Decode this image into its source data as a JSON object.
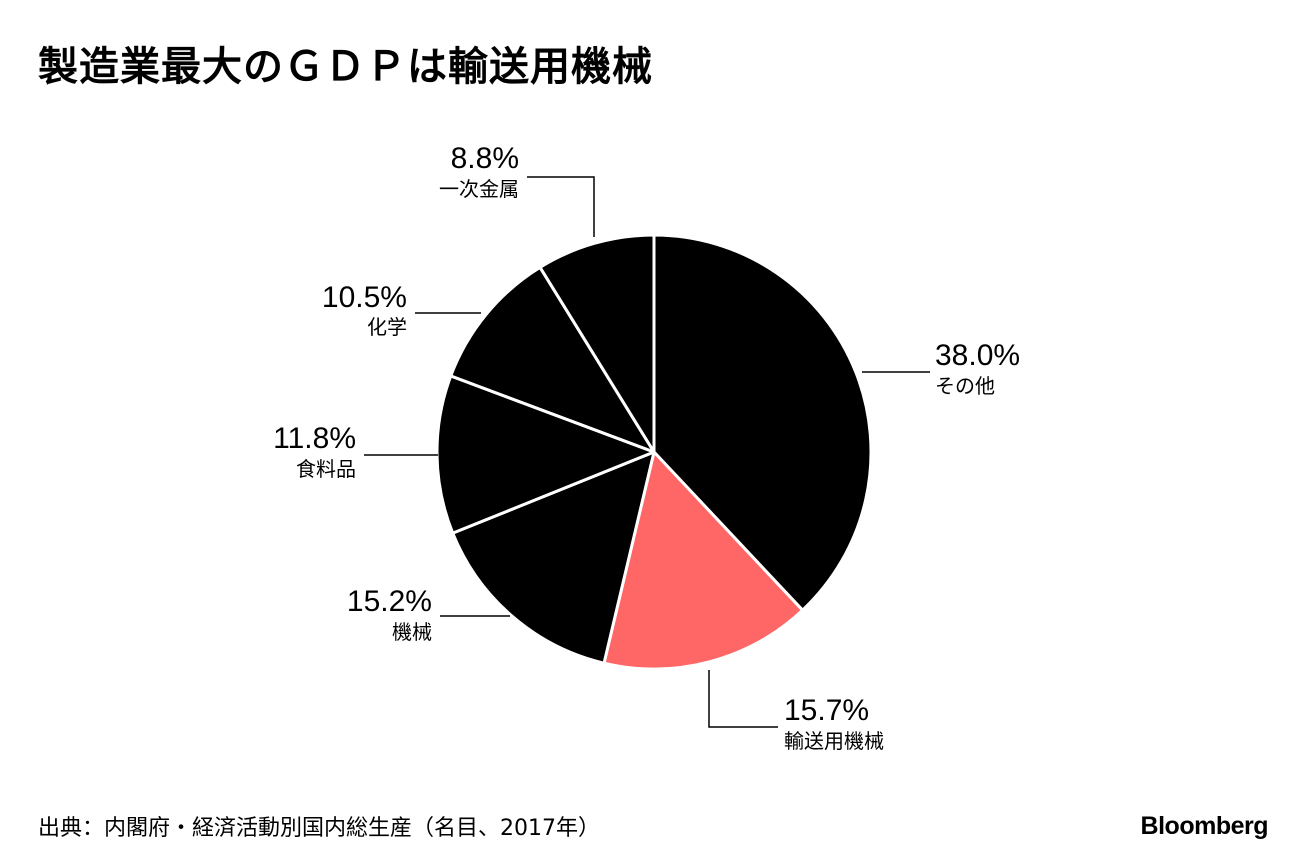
{
  "title": "製造業最大のＧＤＰは輸送用機械",
  "source": "出典：内閣府・経済活動別国内総生産（名目、2017年）",
  "brand": "Bloomberg",
  "colors": {
    "default_slice": "#000000",
    "highlight_slice": "#ff6666",
    "separator": "#ffffff",
    "leader": "#000000"
  },
  "chart_data": {
    "type": "pie",
    "unit": "%",
    "slices": [
      {
        "label": "その他",
        "value": 38.0,
        "display": "38.0%",
        "highlight": false
      },
      {
        "label": "輸送用機械",
        "value": 15.7,
        "display": "15.7%",
        "highlight": true
      },
      {
        "label": "機械",
        "value": 15.2,
        "display": "15.2%",
        "highlight": false
      },
      {
        "label": "食料品",
        "value": 11.8,
        "display": "11.8%",
        "highlight": false
      },
      {
        "label": "化学",
        "value": 10.5,
        "display": "10.5%",
        "highlight": false
      },
      {
        "label": "一次金属",
        "value": 8.8,
        "display": "8.8%",
        "highlight": false
      }
    ]
  }
}
